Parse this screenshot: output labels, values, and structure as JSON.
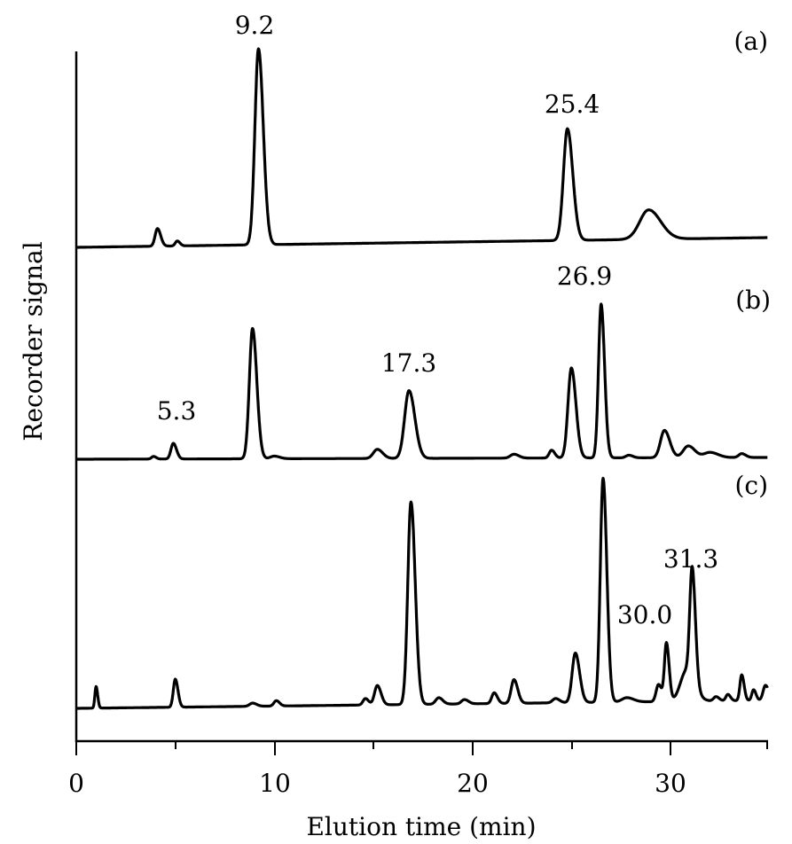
{
  "chart_data": {
    "type": "line",
    "title": "",
    "xlabel": "Elution time (min)",
    "ylabel": "Recorder signal",
    "xlim": [
      0,
      35
    ],
    "xticks_major": [
      0,
      10,
      20,
      30
    ],
    "xticks_minor": [
      5,
      15,
      25,
      35
    ],
    "grid": false,
    "legend": null,
    "series": [
      {
        "name": "(a)",
        "panel_label": "(a)",
        "baseline": 0,
        "peaks": [
          {
            "t": 4.1,
            "height": 0.09,
            "width": 0.12
          },
          {
            "t": 5.1,
            "height": 0.025,
            "width": 0.1
          },
          {
            "t": 9.2,
            "height": 1.0,
            "width": 0.18
          },
          {
            "t": 24.8,
            "height": 0.57,
            "width": 0.2
          },
          {
            "t": 28.9,
            "height": 0.15,
            "width": 0.45
          }
        ],
        "annotations": [
          {
            "text": "9.2",
            "t": 9.2
          },
          {
            "text": "25.4",
            "t": 25.4
          }
        ]
      },
      {
        "name": "(b)",
        "panel_label": "(b)",
        "baseline": 0,
        "peaks": [
          {
            "t": 3.9,
            "height": 0.02,
            "width": 0.1
          },
          {
            "t": 4.9,
            "height": 0.12,
            "width": 0.12
          },
          {
            "t": 8.9,
            "height": 1.0,
            "width": 0.16
          },
          {
            "t": 10.0,
            "height": 0.02,
            "width": 0.2
          },
          {
            "t": 15.2,
            "height": 0.07,
            "width": 0.2
          },
          {
            "t": 16.8,
            "height": 0.52,
            "width": 0.22
          },
          {
            "t": 22.1,
            "height": 0.03,
            "width": 0.18
          },
          {
            "t": 24.0,
            "height": 0.06,
            "width": 0.12
          },
          {
            "t": 25.0,
            "height": 0.69,
            "width": 0.17
          },
          {
            "t": 26.5,
            "height": 1.18,
            "width": 0.13
          },
          {
            "t": 27.9,
            "height": 0.02,
            "width": 0.15
          },
          {
            "t": 29.7,
            "height": 0.21,
            "width": 0.2
          },
          {
            "t": 30.9,
            "height": 0.09,
            "width": 0.25
          },
          {
            "t": 32.0,
            "height": 0.04,
            "width": 0.3
          },
          {
            "t": 33.6,
            "height": 0.03,
            "width": 0.15
          }
        ],
        "annotations": [
          {
            "text": "5.3",
            "t": 5.3
          },
          {
            "text": "17.3",
            "t": 17.3
          },
          {
            "text": "26.9",
            "t": 26.9
          }
        ]
      },
      {
        "name": "(c)",
        "panel_label": "(c)",
        "baseline": 0,
        "peaks": [
          {
            "t": 1.0,
            "height": 0.1,
            "width": 0.06
          },
          {
            "t": 5.0,
            "height": 0.13,
            "width": 0.1
          },
          {
            "t": 8.9,
            "height": 0.015,
            "width": 0.15
          },
          {
            "t": 10.1,
            "height": 0.025,
            "width": 0.12
          },
          {
            "t": 14.6,
            "height": 0.03,
            "width": 0.12
          },
          {
            "t": 15.2,
            "height": 0.09,
            "width": 0.14
          },
          {
            "t": 16.9,
            "height": 0.94,
            "width": 0.16
          },
          {
            "t": 18.3,
            "height": 0.03,
            "width": 0.15
          },
          {
            "t": 19.6,
            "height": 0.02,
            "width": 0.15
          },
          {
            "t": 21.1,
            "height": 0.05,
            "width": 0.12
          },
          {
            "t": 22.1,
            "height": 0.11,
            "width": 0.14
          },
          {
            "t": 24.2,
            "height": 0.02,
            "width": 0.15
          },
          {
            "t": 25.2,
            "height": 0.23,
            "width": 0.16
          },
          {
            "t": 26.6,
            "height": 1.04,
            "width": 0.14
          },
          {
            "t": 27.8,
            "height": 0.02,
            "width": 0.25
          },
          {
            "t": 29.4,
            "height": 0.08,
            "width": 0.12
          },
          {
            "t": 29.8,
            "height": 0.27,
            "width": 0.1
          },
          {
            "t": 30.8,
            "height": 0.14,
            "width": 0.3
          },
          {
            "t": 31.1,
            "height": 0.52,
            "width": 0.12
          },
          {
            "t": 32.3,
            "height": 0.02,
            "width": 0.12
          },
          {
            "t": 32.9,
            "height": 0.03,
            "width": 0.1
          },
          {
            "t": 33.6,
            "height": 0.12,
            "width": 0.09
          },
          {
            "t": 34.2,
            "height": 0.05,
            "width": 0.09
          },
          {
            "t": 34.8,
            "height": 0.07,
            "width": 0.12
          }
        ],
        "annotations": [
          {
            "text": "30.0",
            "t": 30.0
          },
          {
            "text": "31.3",
            "t": 31.3
          }
        ]
      }
    ]
  },
  "labels": {
    "xlabel": "Elution time (min)",
    "ylabel": "Recorder signal",
    "xtick_0": "0",
    "xtick_10": "10",
    "xtick_20": "20",
    "xtick_30": "30",
    "panel_a": "(a)",
    "panel_b": "(b)",
    "panel_c": "(c)",
    "ann_9_2": "9.2",
    "ann_25_4": "25.4",
    "ann_5_3": "5.3",
    "ann_17_3": "17.3",
    "ann_26_9": "26.9",
    "ann_30_0": "30.0",
    "ann_31_3": "31.3"
  },
  "colors": {
    "trace": "#000000",
    "axis": "#000000",
    "background": "#ffffff"
  }
}
